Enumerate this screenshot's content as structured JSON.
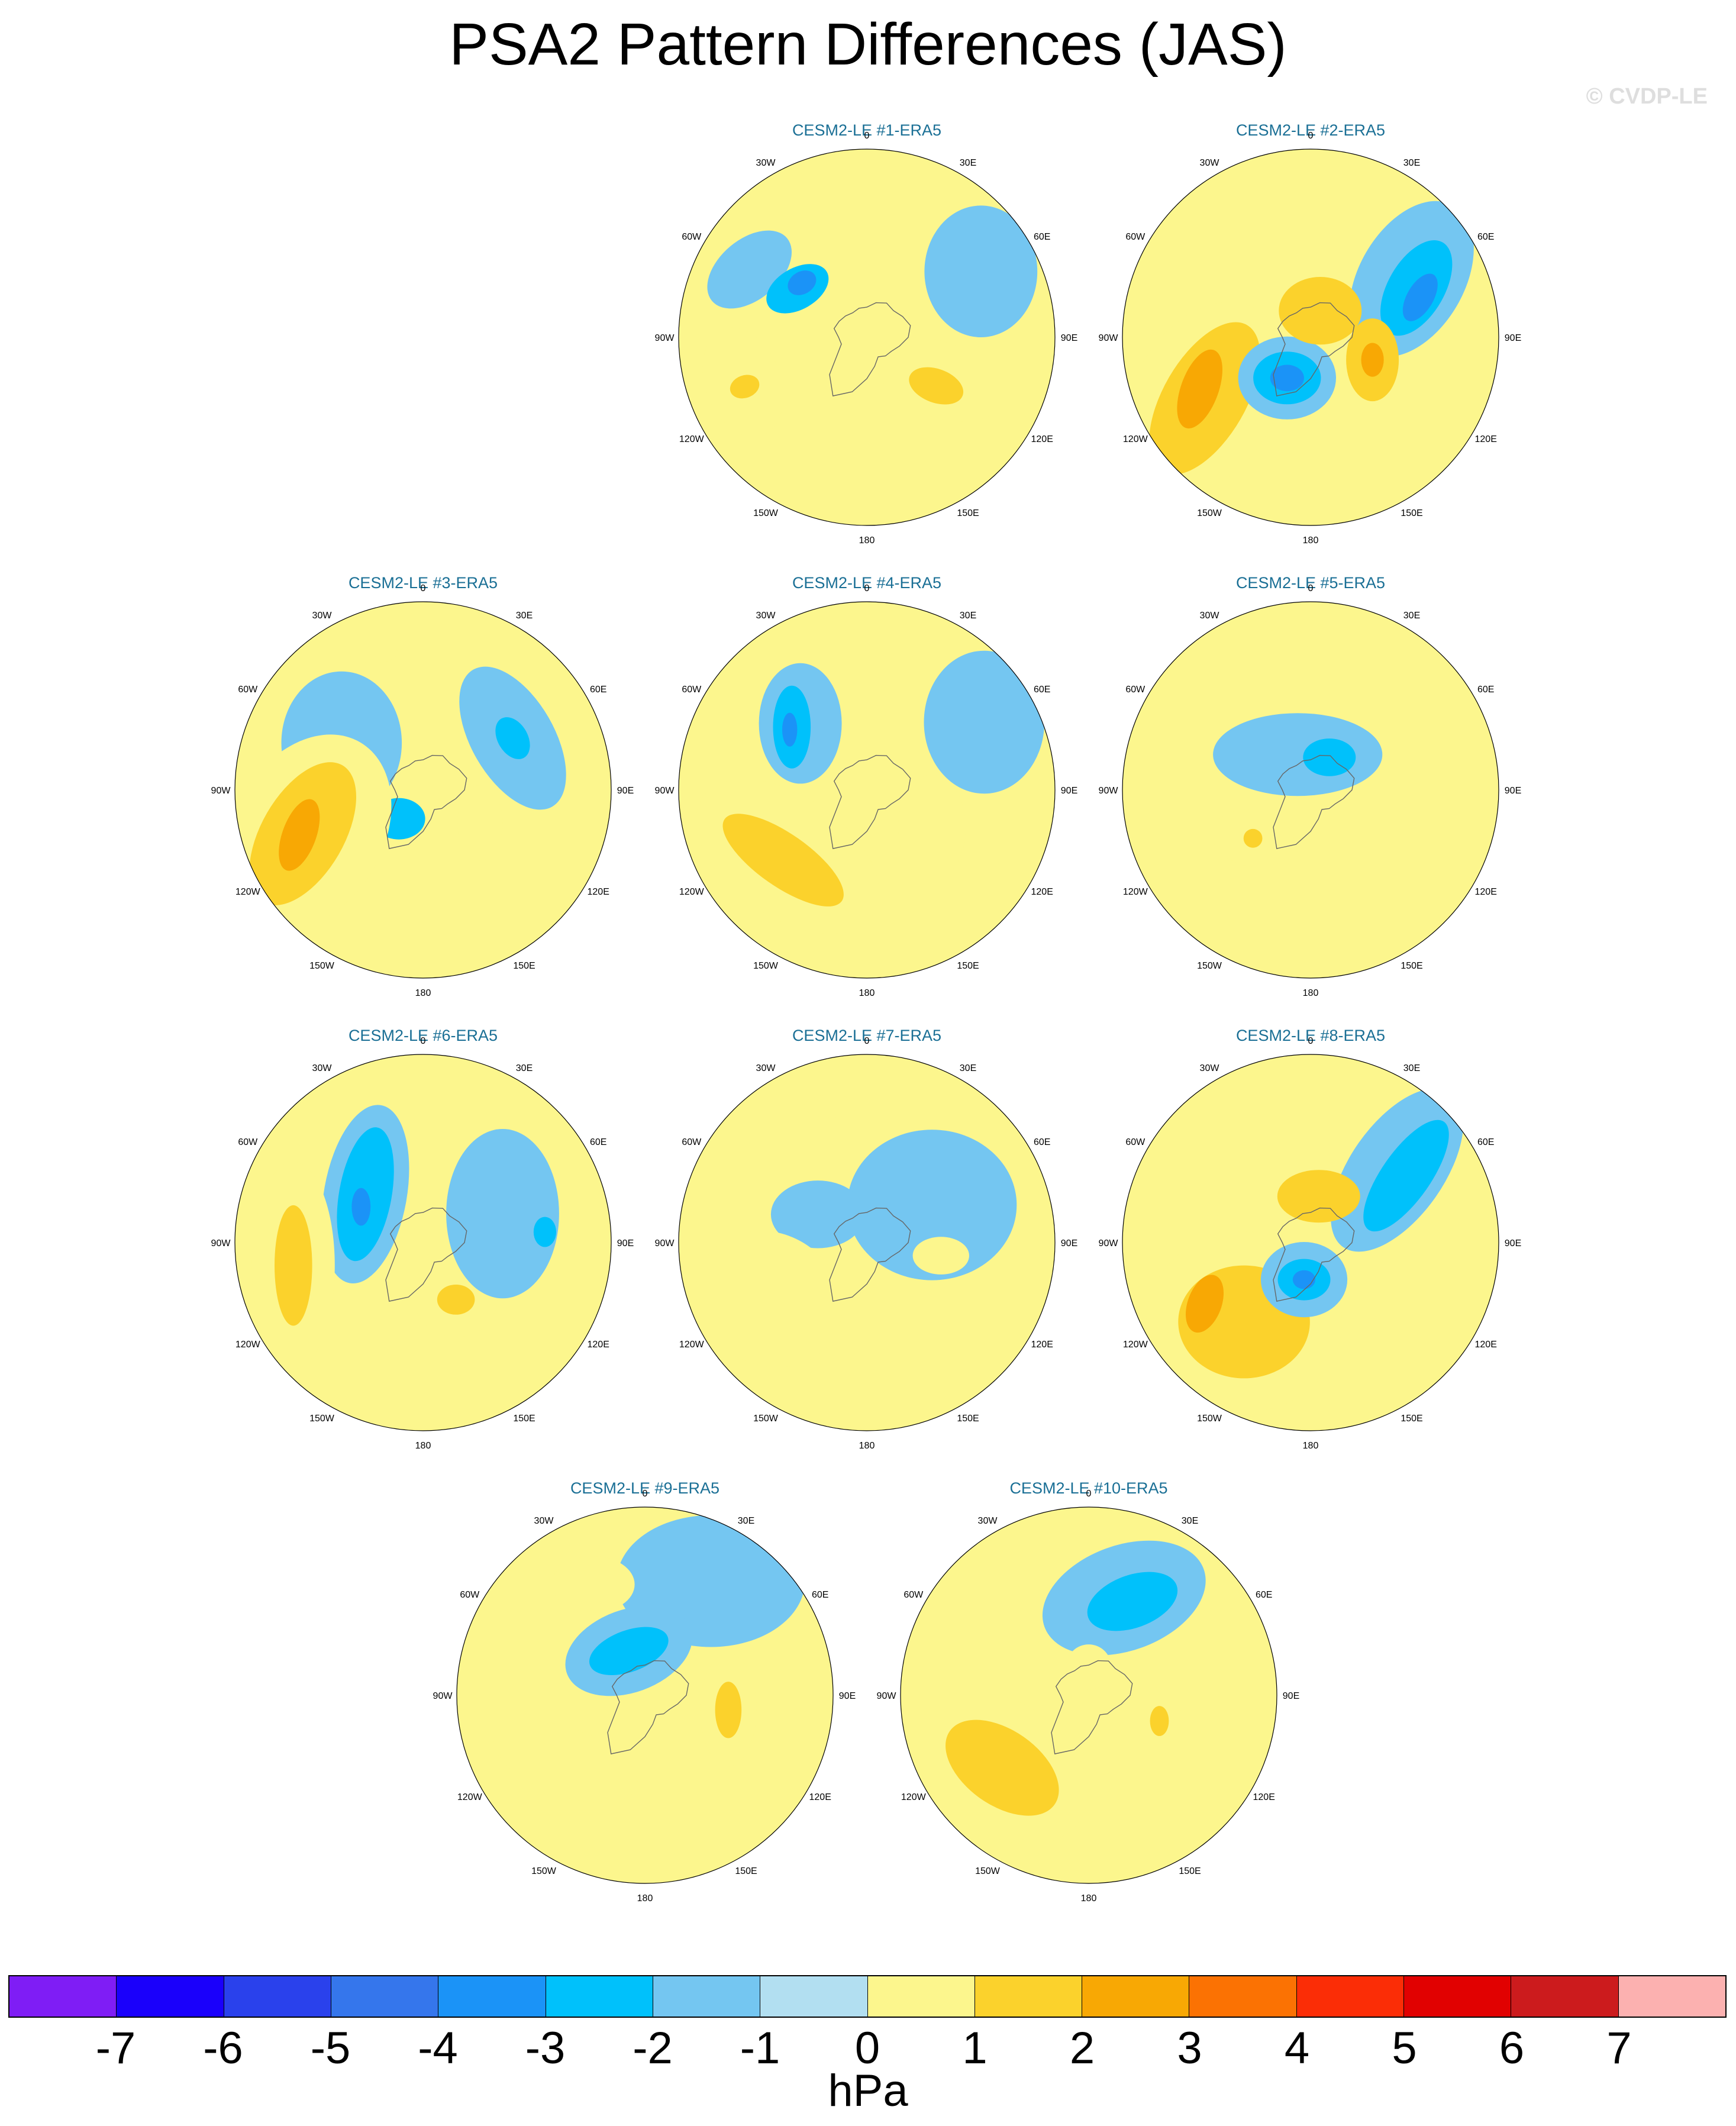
{
  "title": "PSA2 Pattern Differences (JAS)",
  "credit": "© CVDP-LE",
  "longitude_labels": [
    "0",
    "30E",
    "60E",
    "90E",
    "120E",
    "150E",
    "180",
    "150W",
    "120W",
    "90W",
    "60W",
    "30W"
  ],
  "panels": [
    {
      "title": "CESM2-LE #1-ERA5",
      "features": [
        {
          "lon": -60,
          "r": 0.72,
          "rx": 0.26,
          "ry": 0.16,
          "rot": -40,
          "v": -1
        },
        {
          "lon": -55,
          "r": 0.45,
          "rx": 0.18,
          "ry": 0.11,
          "rot": -30,
          "v": -2
        },
        {
          "lon": -50,
          "r": 0.45,
          "rx": 0.08,
          "ry": 0.06,
          "rot": -30,
          "v": -3
        },
        {
          "lon": -110,
          "r": 0.7,
          "rx": 0.3,
          "ry": 0.2,
          "rot": 70,
          "v": 1
        },
        {
          "lon": -112,
          "r": 0.7,
          "rx": 0.06,
          "ry": 0.08,
          "rot": 70,
          "v": 2
        },
        {
          "lon": 120,
          "r": 0.45,
          "rx": 0.35,
          "ry": 0.2,
          "rot": 20,
          "v": 1
        },
        {
          "lon": 125,
          "r": 0.45,
          "rx": 0.15,
          "ry": 0.09,
          "rot": 20,
          "v": 2
        },
        {
          "lon": 60,
          "r": 0.7,
          "rx": 0.3,
          "ry": 0.35,
          "rot": 0,
          "v": -1
        }
      ]
    },
    {
      "title": "CESM2-LE #2-ERA5",
      "features": [
        {
          "lon": 60,
          "r": 0.62,
          "rx": 0.45,
          "ry": 0.28,
          "rot": -60,
          "v": -1
        },
        {
          "lon": 65,
          "r": 0.62,
          "rx": 0.28,
          "ry": 0.15,
          "rot": -60,
          "v": -2
        },
        {
          "lon": 70,
          "r": 0.62,
          "rx": 0.14,
          "ry": 0.07,
          "rot": -60,
          "v": -3
        },
        {
          "lon": -120,
          "r": 0.65,
          "rx": 0.38,
          "ry": 0.55,
          "rot": 30,
          "v": 1
        },
        {
          "lon": -120,
          "r": 0.65,
          "rx": 0.22,
          "ry": 0.45,
          "rot": 30,
          "v": 2
        },
        {
          "lon": -115,
          "r": 0.65,
          "rx": 0.1,
          "ry": 0.22,
          "rot": 20,
          "v": 3
        },
        {
          "lon": -150,
          "r": 0.25,
          "rx": 0.26,
          "ry": 0.22,
          "rot": 0,
          "v": -1
        },
        {
          "lon": -150,
          "r": 0.25,
          "rx": 0.18,
          "ry": 0.14,
          "rot": 0,
          "v": -2
        },
        {
          "lon": -150,
          "r": 0.25,
          "rx": 0.09,
          "ry": 0.07,
          "rot": 0,
          "v": -3
        },
        {
          "lon": 20,
          "r": 0.15,
          "rx": 0.22,
          "ry": 0.18,
          "rot": 0,
          "v": 2
        },
        {
          "lon": 110,
          "r": 0.35,
          "rx": 0.14,
          "ry": 0.22,
          "rot": 0,
          "v": 2
        },
        {
          "lon": 110,
          "r": 0.35,
          "rx": 0.06,
          "ry": 0.09,
          "rot": 0,
          "v": 3
        }
      ]
    },
    {
      "title": "CESM2-LE #3-ERA5",
      "features": [
        {
          "lon": -60,
          "r": 0.5,
          "rx": 0.32,
          "ry": 0.38,
          "rot": 0,
          "v": -1
        },
        {
          "lon": 60,
          "r": 0.55,
          "rx": 0.22,
          "ry": 0.42,
          "rot": -30,
          "v": -1
        },
        {
          "lon": 60,
          "r": 0.55,
          "rx": 0.08,
          "ry": 0.12,
          "rot": -30,
          "v": -2
        },
        {
          "lon": -140,
          "r": 0.2,
          "rx": 0.14,
          "ry": 0.11,
          "rot": 0,
          "v": -2
        },
        {
          "lon": -110,
          "r": 0.65,
          "rx": 0.4,
          "ry": 0.55,
          "rot": 30,
          "v": 1
        },
        {
          "lon": -110,
          "r": 0.68,
          "rx": 0.22,
          "ry": 0.42,
          "rot": 30,
          "v": 2
        },
        {
          "lon": -110,
          "r": 0.7,
          "rx": 0.09,
          "ry": 0.2,
          "rot": 20,
          "v": 3
        },
        {
          "lon": -20,
          "r": 0.78,
          "rx": 0.13,
          "ry": 0.06,
          "rot": 0,
          "v": 1
        },
        {
          "lon": 120,
          "r": 0.35,
          "rx": 0.12,
          "ry": 0.2,
          "rot": 0,
          "v": 1
        }
      ]
    },
    {
      "title": "CESM2-LE #4-ERA5",
      "features": [
        {
          "lon": -45,
          "r": 0.5,
          "rx": 0.22,
          "ry": 0.32,
          "rot": 0,
          "v": -1
        },
        {
          "lon": -50,
          "r": 0.52,
          "rx": 0.1,
          "ry": 0.22,
          "rot": 0,
          "v": -2
        },
        {
          "lon": -52,
          "r": 0.52,
          "rx": 0.04,
          "ry": 0.09,
          "rot": 0,
          "v": -3
        },
        {
          "lon": -130,
          "r": 0.55,
          "rx": 0.55,
          "ry": 0.32,
          "rot": 35,
          "v": 1
        },
        {
          "lon": -130,
          "r": 0.58,
          "rx": 0.38,
          "ry": 0.14,
          "rot": 35,
          "v": 2
        },
        {
          "lon": 120,
          "r": 0.4,
          "rx": 0.18,
          "ry": 0.28,
          "rot": 0,
          "v": 1
        },
        {
          "lon": 60,
          "r": 0.72,
          "rx": 0.32,
          "ry": 0.38,
          "rot": 0,
          "v": -1
        }
      ]
    },
    {
      "title": "CESM2-LE #5-ERA5",
      "features": [
        {
          "lon": -20,
          "r": 0.2,
          "rx": 0.45,
          "ry": 0.22,
          "rot": 0,
          "v": -1
        },
        {
          "lon": 30,
          "r": 0.2,
          "rx": 0.14,
          "ry": 0.1,
          "rot": 0,
          "v": -2
        },
        {
          "lon": -130,
          "r": 0.4,
          "rx": 0.22,
          "ry": 0.15,
          "rot": 10,
          "v": 1
        },
        {
          "lon": -130,
          "r": 0.4,
          "rx": 0.05,
          "ry": 0.05,
          "rot": 0,
          "v": 2
        },
        {
          "lon": -10,
          "r": 0.8,
          "rx": 0.13,
          "ry": 0.07,
          "rot": 0,
          "v": 1
        }
      ]
    },
    {
      "title": "CESM2-LE #6-ERA5",
      "features": [
        {
          "lon": -50,
          "r": 0.4,
          "rx": 0.22,
          "ry": 0.48,
          "rot": 10,
          "v": -1
        },
        {
          "lon": -50,
          "r": 0.4,
          "rx": 0.14,
          "ry": 0.36,
          "rot": 10,
          "v": -2
        },
        {
          "lon": -60,
          "r": 0.38,
          "rx": 0.05,
          "ry": 0.1,
          "rot": 0,
          "v": -3
        },
        {
          "lon": -100,
          "r": 0.7,
          "rx": 0.22,
          "ry": 0.55,
          "rot": 0,
          "v": 1
        },
        {
          "lon": -100,
          "r": 0.7,
          "rx": 0.1,
          "ry": 0.32,
          "rot": 0,
          "v": 2
        },
        {
          "lon": 150,
          "r": 0.35,
          "rx": 0.22,
          "ry": 0.2,
          "rot": 0,
          "v": 1
        },
        {
          "lon": 150,
          "r": 0.35,
          "rx": 0.1,
          "ry": 0.08,
          "rot": 0,
          "v": 2
        },
        {
          "lon": 70,
          "r": 0.45,
          "rx": 0.3,
          "ry": 0.45,
          "rot": 0,
          "v": -1
        },
        {
          "lon": 85,
          "r": 0.65,
          "rx": 0.06,
          "ry": 0.08,
          "rot": 0,
          "v": -2
        }
      ]
    },
    {
      "title": "CESM2-LE #7-ERA5",
      "features": [
        {
          "lon": 60,
          "r": 0.4,
          "rx": 0.45,
          "ry": 0.4,
          "rot": 0,
          "v": -1
        },
        {
          "lon": -60,
          "r": 0.3,
          "rx": 0.25,
          "ry": 0.18,
          "rot": 0,
          "v": -1
        },
        {
          "lon": -120,
          "r": 0.6,
          "rx": 0.4,
          "ry": 0.35,
          "rot": 30,
          "v": 1
        },
        {
          "lon": -15,
          "r": 0.75,
          "rx": 0.14,
          "ry": 0.06,
          "rot": 0,
          "v": 1
        },
        {
          "lon": 100,
          "r": 0.4,
          "rx": 0.15,
          "ry": 0.1,
          "rot": 0,
          "v": 1
        }
      ]
    },
    {
      "title": "CESM2-LE #8-ERA5",
      "features": [
        {
          "lon": 50,
          "r": 0.6,
          "rx": 0.5,
          "ry": 0.25,
          "rot": -55,
          "v": -1
        },
        {
          "lon": 55,
          "r": 0.62,
          "rx": 0.35,
          "ry": 0.13,
          "rot": -55,
          "v": -2
        },
        {
          "lon": -140,
          "r": 0.55,
          "rx": 0.52,
          "ry": 0.48,
          "rot": 0,
          "v": 1
        },
        {
          "lon": -140,
          "r": 0.55,
          "rx": 0.35,
          "ry": 0.3,
          "rot": 0,
          "v": 2
        },
        {
          "lon": -120,
          "r": 0.65,
          "rx": 0.09,
          "ry": 0.16,
          "rot": 20,
          "v": 3
        },
        {
          "lon": -170,
          "r": 0.2,
          "rx": 0.23,
          "ry": 0.2,
          "rot": 0,
          "v": -1
        },
        {
          "lon": -170,
          "r": 0.2,
          "rx": 0.14,
          "ry": 0.11,
          "rot": 0,
          "v": -2
        },
        {
          "lon": -170,
          "r": 0.2,
          "rx": 0.06,
          "ry": 0.05,
          "rot": 0,
          "v": -3
        },
        {
          "lon": 10,
          "r": 0.25,
          "rx": 0.22,
          "ry": 0.14,
          "rot": 0,
          "v": 2
        }
      ]
    },
    {
      "title": "CESM2-LE #9-ERA5",
      "features": [
        {
          "lon": 30,
          "r": 0.7,
          "rx": 0.5,
          "ry": 0.35,
          "rot": 0,
          "v": -1
        },
        {
          "lon": -20,
          "r": 0.25,
          "rx": 0.35,
          "ry": 0.22,
          "rot": -20,
          "v": -1
        },
        {
          "lon": -20,
          "r": 0.25,
          "rx": 0.22,
          "ry": 0.11,
          "rot": -20,
          "v": -2
        },
        {
          "lon": -25,
          "r": 0.65,
          "rx": 0.22,
          "ry": 0.15,
          "rot": 0,
          "v": 1
        },
        {
          "lon": 100,
          "r": 0.45,
          "rx": 0.15,
          "ry": 0.3,
          "rot": 0,
          "v": 1
        },
        {
          "lon": 100,
          "r": 0.45,
          "rx": 0.07,
          "ry": 0.15,
          "rot": 0,
          "v": 2
        },
        {
          "lon": -130,
          "r": 0.55,
          "rx": 0.4,
          "ry": 0.18,
          "rot": 20,
          "v": 1
        }
      ]
    },
    {
      "title": "CESM2-LE #10-ERA5",
      "features": [
        {
          "lon": 20,
          "r": 0.55,
          "rx": 0.45,
          "ry": 0.28,
          "rot": -20,
          "v": -1
        },
        {
          "lon": 25,
          "r": 0.55,
          "rx": 0.25,
          "ry": 0.14,
          "rot": -20,
          "v": -2
        },
        {
          "lon": -130,
          "r": 0.6,
          "rx": 0.5,
          "ry": 0.35,
          "rot": 35,
          "v": 1
        },
        {
          "lon": -130,
          "r": 0.6,
          "rx": 0.34,
          "ry": 0.2,
          "rot": 35,
          "v": 2
        },
        {
          "lon": 110,
          "r": 0.4,
          "rx": 0.12,
          "ry": 0.18,
          "rot": 0,
          "v": 1
        },
        {
          "lon": 110,
          "r": 0.4,
          "rx": 0.05,
          "ry": 0.08,
          "rot": 0,
          "v": 2
        },
        {
          "lon": 0,
          "r": 0.15,
          "rx": 0.12,
          "ry": 0.12,
          "rot": 0,
          "v": 1
        }
      ]
    }
  ],
  "colorbar": {
    "colors": [
      "#7f1df5",
      "#1a00fb",
      "#2a41ec",
      "#3576ec",
      "#1b93f7",
      "#00c1fb",
      "#74c6f1",
      "#b2dff1",
      "#fcf68d",
      "#fbd22c",
      "#f8a804",
      "#fb7203",
      "#fb2d06",
      "#e10101",
      "#cc1b1d",
      "#fcb1b0"
    ],
    "labels": [
      "-7",
      "-6",
      "-5",
      "-4",
      "-3",
      "-2",
      "-1",
      "0",
      "1",
      "2",
      "3",
      "4",
      "5",
      "6",
      "7"
    ],
    "units": "hPa"
  }
}
